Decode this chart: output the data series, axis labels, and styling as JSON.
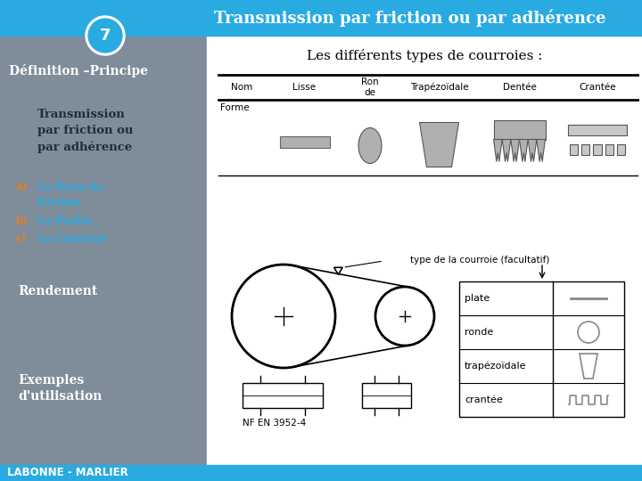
{
  "title": "Transmission par friction ou par adhérence",
  "subtitle": "Les différents types de courroies :",
  "slide_number": "7",
  "left_panel_color": "#7f8c9a",
  "top_bar_color": "#29abe2",
  "bottom_bar_color": "#29abe2",
  "table_headers": [
    "Nom",
    "Lisse",
    "Ron\nde",
    "Trapézoïdale",
    "Dentée",
    "Crantée"
  ],
  "table_row_label": "Forme",
  "bottom_label": "LABONNE - MARLIER",
  "nf_label": "NF EN 3952-4",
  "legend_labels": [
    "plate",
    "ronde",
    "trapézoïdale",
    "crantée"
  ]
}
